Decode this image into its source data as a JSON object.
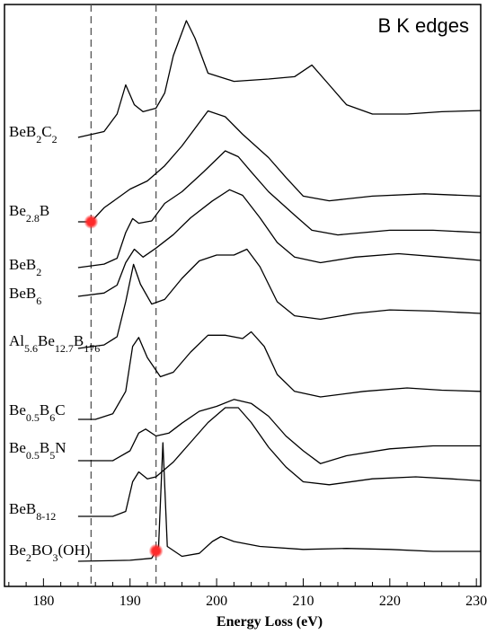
{
  "chart_data": {
    "type": "line",
    "title": "B K edges",
    "xlabel": "Energy Loss (eV)",
    "xlim": [
      175.5,
      230.5
    ],
    "xticks": [
      "180",
      "190",
      "200",
      "210",
      "220",
      "230"
    ],
    "xtick_values": [
      180,
      190,
      200,
      210,
      220,
      230
    ],
    "reference_lines_ev": [
      185.5,
      193
    ],
    "reference_style": "dashed",
    "highlight_color": "#ff2a2a",
    "line_color": "#000000",
    "highlights": [
      {
        "series": "Be2.8B",
        "x": 185.5
      },
      {
        "series": "Be2BO3(OH)",
        "x": 193
      }
    ],
    "series": [
      {
        "name": "BeB2C2",
        "label": {
          "base": "BeB",
          "parts": [
            [
              "2",
              "sub"
            ],
            [
              "C",
              ""
            ],
            [
              "2",
              "sub"
            ]
          ]
        },
        "x_start": 184,
        "points": [
          [
            184,
            0
          ],
          [
            187,
            0.5
          ],
          [
            188.5,
            2
          ],
          [
            189.5,
            4.5
          ],
          [
            190.5,
            2.8
          ],
          [
            191.5,
            2.2
          ],
          [
            193,
            2.5
          ],
          [
            194,
            3.8
          ],
          [
            195,
            7
          ],
          [
            196.5,
            10
          ],
          [
            197.5,
            8.5
          ],
          [
            199,
            5.5
          ],
          [
            202,
            4.8
          ],
          [
            206,
            5
          ],
          [
            209,
            5.2
          ],
          [
            211,
            6.2
          ],
          [
            213,
            4.5
          ],
          [
            215,
            2.8
          ],
          [
            218,
            2
          ],
          [
            222,
            2
          ],
          [
            226,
            2.2
          ],
          [
            230.5,
            2.3
          ]
        ]
      },
      {
        "name": "Be2.8B",
        "label": {
          "base": "Be",
          "parts": [
            [
              "2.8",
              "sub"
            ],
            [
              "B",
              ""
            ]
          ]
        },
        "x_start": 184,
        "points": [
          [
            184,
            0
          ],
          [
            185.5,
            0
          ],
          [
            187,
            1.2
          ],
          [
            188.5,
            2
          ],
          [
            190,
            2.8
          ],
          [
            192,
            3.5
          ],
          [
            194,
            4.8
          ],
          [
            196,
            6.5
          ],
          [
            199,
            9.5
          ],
          [
            201,
            9
          ],
          [
            203,
            7.5
          ],
          [
            206,
            5.5
          ],
          [
            208,
            3.8
          ],
          [
            210,
            2.2
          ],
          [
            213,
            1.8
          ],
          [
            218,
            2.2
          ],
          [
            224,
            2.4
          ],
          [
            230.5,
            2.2
          ]
        ]
      },
      {
        "name": "BeB2",
        "label": {
          "base": "BeB",
          "parts": [
            [
              "2",
              "sub"
            ]
          ]
        },
        "x_start": 184,
        "points": [
          [
            184,
            0
          ],
          [
            187,
            0.3
          ],
          [
            188.5,
            0.8
          ],
          [
            189.5,
            3
          ],
          [
            190.3,
            4.2
          ],
          [
            191,
            3.8
          ],
          [
            192.5,
            4
          ],
          [
            194,
            5.5
          ],
          [
            196,
            6.5
          ],
          [
            198.5,
            8.2
          ],
          [
            201,
            10
          ],
          [
            202.5,
            9.5
          ],
          [
            204,
            8.2
          ],
          [
            206,
            6.5
          ],
          [
            209,
            4.5
          ],
          [
            211,
            3.2
          ],
          [
            214,
            2.8
          ],
          [
            220,
            3.2
          ],
          [
            225,
            3.2
          ],
          [
            230.5,
            3
          ]
        ]
      },
      {
        "name": "BeB6",
        "label": {
          "base": "BeB",
          "parts": [
            [
              "6",
              "sub"
            ]
          ]
        },
        "x_start": 184,
        "points": [
          [
            184,
            0
          ],
          [
            187,
            0.3
          ],
          [
            188.5,
            1
          ],
          [
            189.5,
            3
          ],
          [
            190.5,
            4.2
          ],
          [
            191.5,
            3.5
          ],
          [
            193,
            4.3
          ],
          [
            195,
            5.5
          ],
          [
            197,
            7
          ],
          [
            199.5,
            8.5
          ],
          [
            201.5,
            9.5
          ],
          [
            203,
            9
          ],
          [
            205,
            7
          ],
          [
            207,
            4.8
          ],
          [
            209,
            3.5
          ],
          [
            212,
            3
          ],
          [
            216,
            3.5
          ],
          [
            221,
            3.8
          ],
          [
            226,
            3.5
          ],
          [
            230.5,
            3.2
          ]
        ]
      },
      {
        "name": "Al5.6Be12.7B176",
        "label": {
          "base": "Al",
          "parts": [
            [
              "5.6",
              "sub"
            ],
            [
              "Be",
              ""
            ],
            [
              "12.7",
              "sub"
            ],
            [
              "B",
              ""
            ],
            [
              "176",
              "sub"
            ]
          ]
        },
        "x_start": 184,
        "points": [
          [
            184,
            0
          ],
          [
            187,
            0.3
          ],
          [
            188.5,
            1
          ],
          [
            189.5,
            4
          ],
          [
            190.4,
            7.2
          ],
          [
            191.2,
            5.5
          ],
          [
            192.5,
            3.8
          ],
          [
            194,
            4.2
          ],
          [
            196,
            6
          ],
          [
            198,
            7.5
          ],
          [
            200,
            8
          ],
          [
            202,
            8
          ],
          [
            203.5,
            8.5
          ],
          [
            205,
            7
          ],
          [
            207,
            4
          ],
          [
            209,
            2.8
          ],
          [
            212,
            2.5
          ],
          [
            216,
            3
          ],
          [
            220,
            3.3
          ],
          [
            225,
            3.2
          ],
          [
            230.5,
            3
          ]
        ]
      },
      {
        "name": "Be0.5B6C",
        "label": {
          "base": "Be",
          "parts": [
            [
              "0.5",
              "sub"
            ],
            [
              "B",
              ""
            ],
            [
              "6",
              "sub"
            ],
            [
              "C",
              ""
            ]
          ]
        },
        "x_start": 184,
        "points": [
          [
            184,
            0
          ],
          [
            186,
            0
          ],
          [
            188,
            0.5
          ],
          [
            189.5,
            2.5
          ],
          [
            190.3,
            6.5
          ],
          [
            191,
            7.3
          ],
          [
            192,
            5.5
          ],
          [
            193.5,
            3.8
          ],
          [
            195,
            4.2
          ],
          [
            197,
            6
          ],
          [
            199,
            7.5
          ],
          [
            201,
            7.5
          ],
          [
            203,
            7.2
          ],
          [
            204,
            7.8
          ],
          [
            205.5,
            6.5
          ],
          [
            207,
            4
          ],
          [
            209,
            2.5
          ],
          [
            212,
            2
          ],
          [
            217,
            2.5
          ],
          [
            222,
            2.8
          ],
          [
            226,
            2.6
          ],
          [
            230.5,
            2.5
          ]
        ]
      },
      {
        "name": "Be0.5B5N",
        "label": {
          "base": "Be",
          "parts": [
            [
              "0.5",
              "sub"
            ],
            [
              "B",
              ""
            ],
            [
              "5",
              "sub"
            ],
            [
              "N",
              ""
            ]
          ]
        },
        "x_start": 184,
        "points": [
          [
            184,
            0
          ],
          [
            188,
            0
          ],
          [
            190,
            1
          ],
          [
            191,
            2.8
          ],
          [
            191.8,
            3.2
          ],
          [
            193,
            2.5
          ],
          [
            194.5,
            2.8
          ],
          [
            196,
            3.8
          ],
          [
            198,
            5
          ],
          [
            200,
            5.5
          ],
          [
            202,
            6.2
          ],
          [
            204,
            5.8
          ],
          [
            206,
            4.5
          ],
          [
            208,
            2.5
          ],
          [
            210,
            1
          ],
          [
            212,
            -0.3
          ],
          [
            215,
            0.5
          ],
          [
            220,
            1.2
          ],
          [
            225,
            1.5
          ],
          [
            230.5,
            1.5
          ]
        ]
      },
      {
        "name": "BeB8-12",
        "label": {
          "base": "BeB",
          "parts": [
            [
              "8-12",
              "sub"
            ]
          ]
        },
        "x_start": 184,
        "points": [
          [
            184,
            0
          ],
          [
            188,
            0
          ],
          [
            189.5,
            0.5
          ],
          [
            190.3,
            3.5
          ],
          [
            191,
            4.5
          ],
          [
            192,
            3.8
          ],
          [
            193,
            4
          ],
          [
            195,
            5.5
          ],
          [
            197,
            7.5
          ],
          [
            199,
            9.5
          ],
          [
            201,
            11
          ],
          [
            202.5,
            11
          ],
          [
            204,
            9.5
          ],
          [
            206,
            7
          ],
          [
            208,
            5
          ],
          [
            210,
            3.5
          ],
          [
            213,
            3.2
          ],
          [
            218,
            3.8
          ],
          [
            223,
            4
          ],
          [
            227,
            3.8
          ],
          [
            230.5,
            3.6
          ]
        ]
      },
      {
        "name": "Be2BO3(OH)",
        "label": {
          "base": "Be",
          "parts": [
            [
              "2",
              "sub"
            ],
            [
              "BO",
              ""
            ],
            [
              "3",
              "sub"
            ],
            [
              "(OH)",
              ""
            ]
          ]
        },
        "x_start": 184,
        "points": [
          [
            184,
            0
          ],
          [
            190,
            0.1
          ],
          [
            192.5,
            0.3
          ],
          [
            193.3,
            1.5
          ],
          [
            193.8,
            12
          ],
          [
            194.3,
            1.5
          ],
          [
            196,
            0.5
          ],
          [
            198,
            0.8
          ],
          [
            199.5,
            2
          ],
          [
            200.5,
            2.5
          ],
          [
            202,
            2
          ],
          [
            205,
            1.5
          ],
          [
            210,
            1.2
          ],
          [
            215,
            1.3
          ],
          [
            220,
            1.2
          ],
          [
            225,
            1
          ],
          [
            230.5,
            1
          ]
        ]
      }
    ]
  }
}
